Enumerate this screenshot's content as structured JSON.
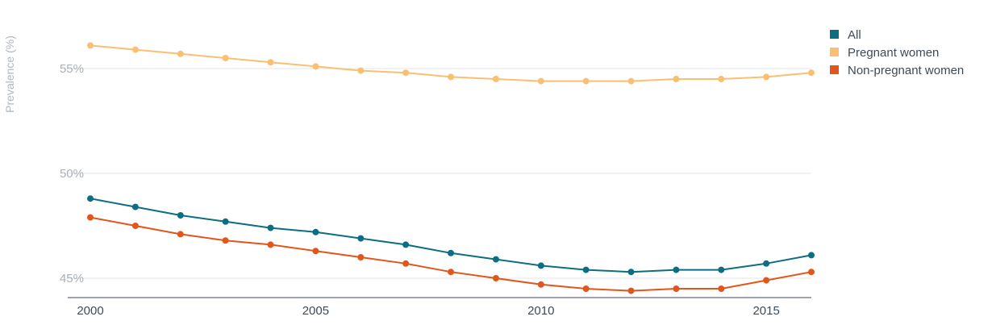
{
  "chart_data": {
    "type": "line",
    "ylabel": "Prevalence (%)",
    "xlim": [
      2000,
      2016
    ],
    "ylim": [
      44.1,
      57.5
    ],
    "yticks": [
      45,
      50,
      55
    ],
    "ytick_labels": [
      "45%",
      "50%",
      "55%"
    ],
    "xticks": [
      2000,
      2005,
      2010,
      2015
    ],
    "xtick_labels": [
      "2000",
      "2005",
      "2010",
      "2015"
    ],
    "grid": true,
    "legend_position": "top-right",
    "x": [
      2000,
      2001,
      2002,
      2003,
      2004,
      2005,
      2006,
      2007,
      2008,
      2009,
      2010,
      2011,
      2012,
      2013,
      2014,
      2015,
      2016
    ],
    "series": [
      {
        "name": "All",
        "color": "#0c6e82",
        "values": [
          48.8,
          48.4,
          48.0,
          47.7,
          47.4,
          47.2,
          46.9,
          46.6,
          46.2,
          45.9,
          45.6,
          45.4,
          45.3,
          45.4,
          45.4,
          45.7,
          46.1
        ]
      },
      {
        "name": "Pregnant women",
        "color": "#fbbf72",
        "values": [
          56.1,
          55.9,
          55.7,
          55.5,
          55.3,
          55.1,
          54.9,
          54.8,
          54.6,
          54.5,
          54.4,
          54.4,
          54.4,
          54.5,
          54.5,
          54.6,
          54.8
        ]
      },
      {
        "name": "Non-pregnant women",
        "color": "#e1561b",
        "values": [
          47.9,
          47.5,
          47.1,
          46.8,
          46.6,
          46.3,
          46.0,
          45.7,
          45.3,
          45.0,
          44.7,
          44.5,
          44.4,
          44.5,
          44.5,
          44.9,
          45.3
        ]
      }
    ]
  }
}
